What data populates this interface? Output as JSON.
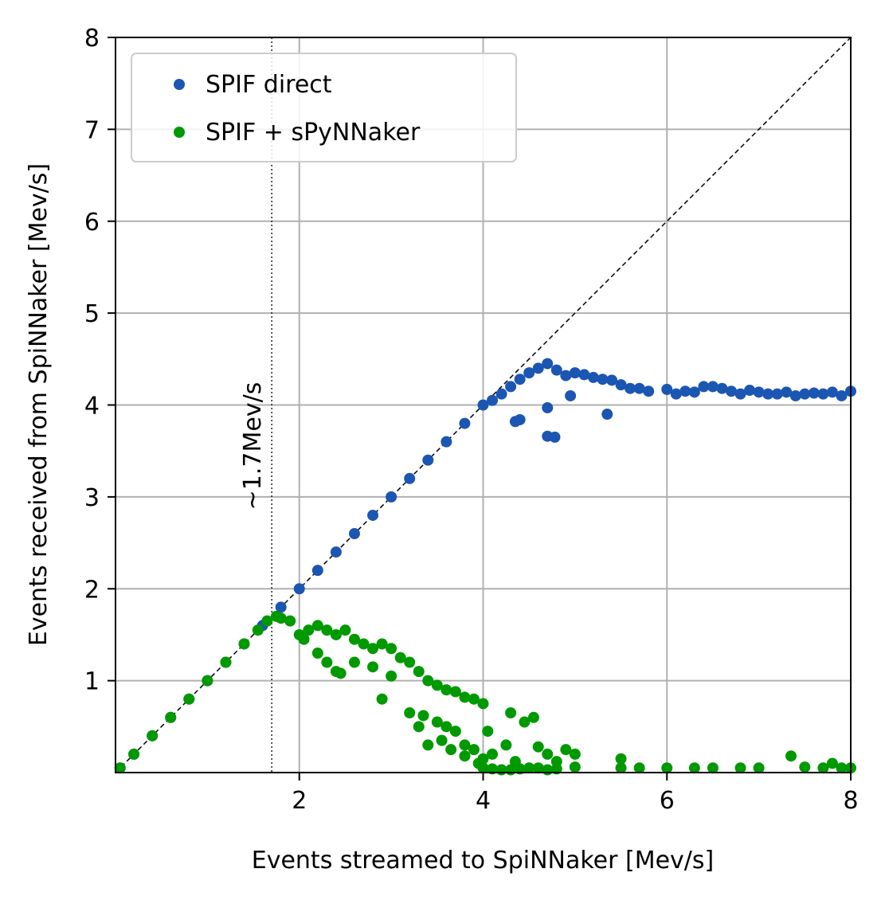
{
  "chart_data": {
    "type": "scatter",
    "xlabel": "Events streamed to SpiNNaker [Mev/s]",
    "ylabel": "Events received from SpiNNaker [Mev/s]",
    "xlim": [
      0,
      8
    ],
    "ylim": [
      0,
      8
    ],
    "xticks": [
      2,
      4,
      6,
      8
    ],
    "yticks": [
      1,
      2,
      3,
      4,
      5,
      6,
      7,
      8
    ],
    "grid": true,
    "legend_position": "top-left",
    "reference_line": {
      "style": "dashed",
      "from": [
        0,
        0
      ],
      "to": [
        8,
        8
      ]
    },
    "annotation": {
      "text": "~1.7Mev/s",
      "x": 1.7,
      "style": "dotted-vertical"
    },
    "series": [
      {
        "name": "SPIF direct",
        "color": "#1c56b3",
        "points": [
          [
            0.05,
            0.05
          ],
          [
            0.2,
            0.2
          ],
          [
            0.4,
            0.4
          ],
          [
            0.6,
            0.6
          ],
          [
            0.8,
            0.8
          ],
          [
            1.0,
            1.0
          ],
          [
            1.2,
            1.2
          ],
          [
            1.4,
            1.4
          ],
          [
            1.6,
            1.6
          ],
          [
            1.8,
            1.8
          ],
          [
            2.0,
            2.0
          ],
          [
            2.2,
            2.2
          ],
          [
            2.4,
            2.4
          ],
          [
            2.6,
            2.6
          ],
          [
            2.8,
            2.8
          ],
          [
            3.0,
            3.0
          ],
          [
            3.2,
            3.2
          ],
          [
            3.4,
            3.4
          ],
          [
            3.6,
            3.6
          ],
          [
            3.8,
            3.8
          ],
          [
            4.0,
            4.0
          ],
          [
            4.1,
            4.05
          ],
          [
            4.2,
            4.12
          ],
          [
            4.3,
            4.2
          ],
          [
            4.4,
            4.28
          ],
          [
            4.5,
            4.35
          ],
          [
            4.6,
            4.4
          ],
          [
            4.7,
            4.45
          ],
          [
            4.8,
            4.38
          ],
          [
            4.9,
            4.32
          ],
          [
            5.0,
            4.35
          ],
          [
            5.1,
            4.33
          ],
          [
            5.2,
            4.3
          ],
          [
            5.3,
            4.28
          ],
          [
            5.4,
            4.27
          ],
          [
            5.5,
            4.22
          ],
          [
            5.6,
            4.18
          ],
          [
            5.7,
            4.18
          ],
          [
            6.0,
            4.17
          ],
          [
            6.1,
            4.12
          ],
          [
            6.2,
            4.15
          ],
          [
            6.3,
            4.14
          ],
          [
            6.4,
            4.2
          ],
          [
            6.5,
            4.2
          ],
          [
            6.6,
            4.18
          ],
          [
            6.7,
            4.15
          ],
          [
            6.8,
            4.12
          ],
          [
            6.9,
            4.16
          ],
          [
            7.0,
            4.14
          ],
          [
            7.1,
            4.12
          ],
          [
            7.2,
            4.12
          ],
          [
            7.3,
            4.14
          ],
          [
            7.4,
            4.1
          ],
          [
            7.5,
            4.12
          ],
          [
            7.6,
            4.13
          ],
          [
            7.7,
            4.12
          ],
          [
            7.8,
            4.14
          ],
          [
            7.9,
            4.1
          ],
          [
            8.0,
            4.15
          ],
          [
            4.35,
            3.82
          ],
          [
            4.4,
            3.84
          ],
          [
            4.7,
            3.97
          ],
          [
            4.7,
            3.66
          ],
          [
            4.78,
            3.65
          ],
          [
            4.95,
            4.1
          ],
          [
            5.35,
            3.9
          ],
          [
            5.8,
            4.15
          ]
        ]
      },
      {
        "name": "SPIF + sPyNNaker",
        "color": "#009900",
        "points": [
          [
            0.05,
            0.05
          ],
          [
            0.2,
            0.2
          ],
          [
            0.4,
            0.4
          ],
          [
            0.6,
            0.6
          ],
          [
            0.8,
            0.8
          ],
          [
            1.0,
            1.0
          ],
          [
            1.2,
            1.2
          ],
          [
            1.4,
            1.4
          ],
          [
            1.55,
            1.55
          ],
          [
            1.65,
            1.65
          ],
          [
            1.75,
            1.7
          ],
          [
            1.8,
            1.68
          ],
          [
            1.9,
            1.65
          ],
          [
            2.0,
            1.5
          ],
          [
            2.05,
            1.45
          ],
          [
            2.1,
            1.55
          ],
          [
            2.2,
            1.6
          ],
          [
            2.3,
            1.55
          ],
          [
            2.4,
            1.5
          ],
          [
            2.5,
            1.55
          ],
          [
            2.6,
            1.45
          ],
          [
            2.7,
            1.4
          ],
          [
            2.8,
            1.35
          ],
          [
            2.9,
            1.4
          ],
          [
            3.0,
            1.35
          ],
          [
            3.1,
            1.25
          ],
          [
            3.2,
            1.2
          ],
          [
            3.3,
            1.1
          ],
          [
            3.4,
            1.0
          ],
          [
            3.5,
            0.95
          ],
          [
            3.6,
            0.9
          ],
          [
            3.7,
            0.88
          ],
          [
            3.8,
            0.82
          ],
          [
            3.9,
            0.8
          ],
          [
            4.0,
            0.75
          ],
          [
            2.2,
            1.3
          ],
          [
            2.3,
            1.2
          ],
          [
            2.4,
            1.1
          ],
          [
            2.45,
            1.08
          ],
          [
            2.6,
            1.2
          ],
          [
            2.8,
            1.15
          ],
          [
            2.9,
            0.8
          ],
          [
            3.0,
            1.05
          ],
          [
            3.2,
            0.65
          ],
          [
            3.3,
            0.5
          ],
          [
            3.35,
            0.62
          ],
          [
            3.5,
            0.55
          ],
          [
            3.6,
            0.5
          ],
          [
            3.7,
            0.45
          ],
          [
            3.8,
            0.3
          ],
          [
            3.9,
            0.25
          ],
          [
            4.0,
            0.15
          ],
          [
            3.4,
            0.3
          ],
          [
            3.55,
            0.35
          ],
          [
            3.65,
            0.25
          ],
          [
            3.8,
            0.18
          ],
          [
            3.95,
            0.1
          ],
          [
            4.05,
            0.45
          ],
          [
            4.3,
            0.65
          ],
          [
            4.45,
            0.55
          ],
          [
            4.55,
            0.6
          ],
          [
            4.6,
            0.28
          ],
          [
            4.7,
            0.2
          ],
          [
            4.8,
            0.12
          ],
          [
            4.9,
            0.25
          ],
          [
            4.1,
            0.2
          ],
          [
            4.25,
            0.3
          ],
          [
            4.35,
            0.12
          ],
          [
            4.6,
            0.05
          ],
          [
            4.0,
            0.05
          ],
          [
            4.1,
            0.04
          ],
          [
            4.2,
            0.03
          ],
          [
            4.3,
            0.03
          ],
          [
            4.4,
            0.04
          ],
          [
            4.5,
            0.05
          ],
          [
            4.7,
            0.03
          ],
          [
            4.8,
            0.04
          ],
          [
            5.0,
            0.06
          ],
          [
            5.0,
            0.2
          ],
          [
            5.5,
            0.15
          ],
          [
            5.5,
            0.05
          ],
          [
            5.7,
            0.05
          ],
          [
            6.0,
            0.05
          ],
          [
            6.3,
            0.05
          ],
          [
            6.5,
            0.05
          ],
          [
            6.8,
            0.05
          ],
          [
            7.0,
            0.05
          ],
          [
            7.35,
            0.18
          ],
          [
            7.5,
            0.06
          ],
          [
            7.7,
            0.05
          ],
          [
            7.8,
            0.1
          ],
          [
            7.9,
            0.05
          ],
          [
            8.0,
            0.05
          ]
        ]
      }
    ]
  }
}
